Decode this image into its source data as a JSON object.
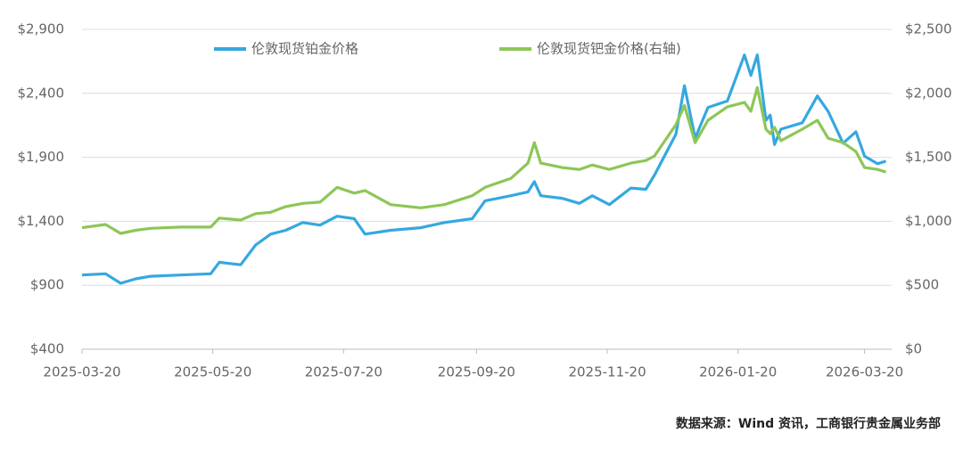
{
  "chart_data": {
    "type": "line",
    "legend": "top",
    "grid": true,
    "source": "数据来源：Wind 资讯，工商银行贵金属业务部",
    "x": [
      "2025-03-20",
      "2025-03-31",
      "2025-04-07",
      "2025-04-14",
      "2025-04-21",
      "2025-05-05",
      "2025-05-19",
      "2025-05-23",
      "2025-06-02",
      "2025-06-09",
      "2025-06-16",
      "2025-06-23",
      "2025-07-01",
      "2025-07-09",
      "2025-07-17",
      "2025-07-25",
      "2025-07-30",
      "2025-08-11",
      "2025-08-25",
      "2025-09-05",
      "2025-09-18",
      "2025-09-24",
      "2025-10-06",
      "2025-10-14",
      "2025-10-17",
      "2025-10-20",
      "2025-10-30",
      "2025-11-07",
      "2025-11-13",
      "2025-11-21",
      "2025-12-01",
      "2025-12-08",
      "2025-12-12",
      "2025-12-22",
      "2025-12-26",
      "2025-12-31",
      "2026-01-06",
      "2026-01-15",
      "2026-01-23",
      "2026-01-26",
      "2026-01-29",
      "2026-02-02",
      "2026-02-04",
      "2026-02-06",
      "2026-02-09",
      "2026-02-19",
      "2026-02-26",
      "2026-03-03",
      "2026-03-10",
      "2026-03-16",
      "2026-03-20",
      "2026-03-26",
      "2026-03-30"
    ],
    "xlim": [
      "2025-03-20",
      "2026-03-31"
    ],
    "xticks": [
      "2025-03-20",
      "2025-05-20",
      "2025-07-20",
      "2025-09-20",
      "2025-11-20",
      "2026-01-20",
      "2026-03-20"
    ],
    "ylim": [
      400,
      2900
    ],
    "yticks": [
      {
        "value": 400,
        "label": "$400"
      },
      {
        "value": 900,
        "label": "$900"
      },
      {
        "value": 1400,
        "label": "$1,400"
      },
      {
        "value": 1900,
        "label": "$1,900"
      },
      {
        "value": 2400,
        "label": "$2,400"
      },
      {
        "value": 2900,
        "label": "$2,900"
      }
    ],
    "y2lim": [
      0,
      2500
    ],
    "y2ticks": [
      {
        "value": 0,
        "label": "$0"
      },
      {
        "value": 500,
        "label": "$500"
      },
      {
        "value": 1000,
        "label": "$1,000"
      },
      {
        "value": 1500,
        "label": "$1,500"
      },
      {
        "value": 2000,
        "label": "$2,000"
      },
      {
        "value": 2500,
        "label": "$2,500"
      }
    ],
    "series": [
      {
        "name": "伦敦现货铂金价格",
        "color": "#35a8e0",
        "values": [
          980,
          990,
          915,
          950,
          970,
          980,
          990,
          1080,
          1060,
          1215,
          1300,
          1330,
          1390,
          1370,
          1440,
          1420,
          1300,
          1330,
          1350,
          1390,
          1420,
          1560,
          1600,
          1630,
          1710,
          1600,
          1580,
          1540,
          1600,
          1530,
          1660,
          1650,
          1760,
          2080,
          2460,
          2050,
          2290,
          2340,
          2700,
          2540,
          2700,
          2190,
          2230,
          2000,
          2120,
          2170,
          2380,
          2260,
          2010,
          2100,
          1910,
          1850,
          1870
        ]
      },
      {
        "name": "伦敦现货钯金价格(右轴)",
        "color": "#8dc657",
        "axis": "y2",
        "values": [
          950,
          975,
          905,
          930,
          945,
          955,
          955,
          1025,
          1010,
          1060,
          1070,
          1115,
          1140,
          1150,
          1265,
          1220,
          1240,
          1130,
          1105,
          1130,
          1200,
          1265,
          1335,
          1455,
          1615,
          1455,
          1420,
          1405,
          1440,
          1405,
          1455,
          1475,
          1510,
          1755,
          1905,
          1615,
          1790,
          1895,
          1930,
          1860,
          2045,
          1720,
          1685,
          1735,
          1630,
          1720,
          1790,
          1650,
          1615,
          1545,
          1420,
          1405,
          1385
        ]
      }
    ]
  }
}
